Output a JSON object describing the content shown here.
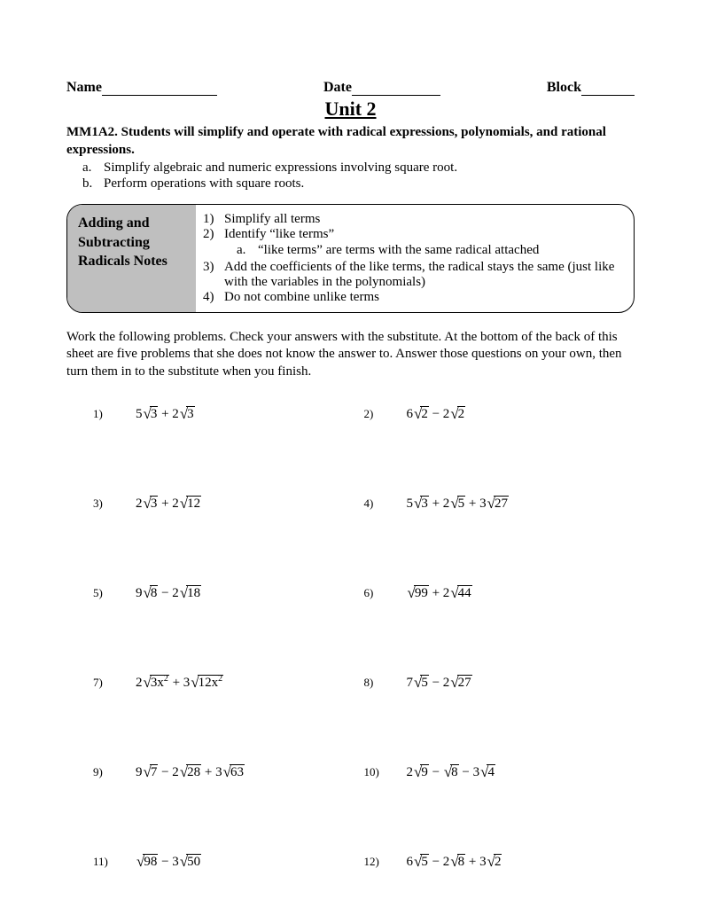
{
  "header": {
    "name_label": "Name",
    "date_label": "Date",
    "block_label": "Block",
    "name_blank_width": 130,
    "date_blank_width": 100,
    "block_blank_width": 60
  },
  "unit_title": "Unit 2",
  "standard": "MM1A2. Students will simplify and operate with radical expressions, polynomials, and rational expressions.",
  "objectives": [
    {
      "letter": "a.",
      "text": "Simplify algebraic and numeric expressions involving square root."
    },
    {
      "letter": "b.",
      "text": "Perform operations with square roots."
    }
  ],
  "notes": {
    "title": "Adding and Subtracting Radicals Notes",
    "steps": [
      {
        "n": "1)",
        "text": "Simplify all terms",
        "sub": null
      },
      {
        "n": "2)",
        "text": "Identify “like terms”",
        "sub": {
          "letter": "a.",
          "text": "“like terms” are terms with the same radical attached"
        }
      },
      {
        "n": "3)",
        "text": "Add the coefficients of the like terms, the radical stays the same (just like with the variables in the polynomials)",
        "sub": null
      },
      {
        "n": "4)",
        "text": "Do not combine unlike terms",
        "sub": null
      }
    ]
  },
  "instructions": "Work the following problems. Check your answers with the substitute. At the bottom of the back of this sheet are five problems that she does not know the answer to. Answer those questions on your own, then turn them in to the substitute when you finish.",
  "problems": [
    {
      "n": "1)",
      "terms": [
        {
          "coef": "5",
          "rad": "3"
        },
        {
          "op": " + ",
          "coef": "2",
          "rad": "3"
        }
      ]
    },
    {
      "n": "2)",
      "terms": [
        {
          "coef": "6",
          "rad": "2"
        },
        {
          "op": " − ",
          "coef": "2",
          "rad": "2"
        }
      ]
    },
    {
      "n": "3)",
      "terms": [
        {
          "coef": "2",
          "rad": "3"
        },
        {
          "op": " + ",
          "coef": "2",
          "rad": "12"
        }
      ]
    },
    {
      "n": "4)",
      "terms": [
        {
          "coef": "5",
          "rad": "3"
        },
        {
          "op": " + ",
          "coef": "2",
          "rad": "5"
        },
        {
          "op": " + ",
          "coef": "3",
          "rad": "27"
        }
      ]
    },
    {
      "n": "5)",
      "terms": [
        {
          "coef": "9",
          "rad": "8"
        },
        {
          "op": " − ",
          "coef": "2",
          "rad": "18"
        }
      ]
    },
    {
      "n": "6)",
      "terms": [
        {
          "coef": "",
          "rad": "99"
        },
        {
          "op": " + ",
          "coef": "2",
          "rad": "44"
        }
      ]
    },
    {
      "n": "7)",
      "terms": [
        {
          "coef": "2",
          "rad": "3x",
          "sup": "2"
        },
        {
          "op": " + ",
          "coef": "3",
          "rad": "12x",
          "sup": "2"
        }
      ]
    },
    {
      "n": "8)",
      "terms": [
        {
          "coef": "7",
          "rad": "5"
        },
        {
          "op": " − ",
          "coef": "2",
          "rad": "27"
        }
      ]
    },
    {
      "n": "9)",
      "terms": [
        {
          "coef": "9",
          "rad": "7"
        },
        {
          "op": " − ",
          "coef": "2",
          "rad": "28"
        },
        {
          "op": " + ",
          "coef": "3",
          "rad": "63"
        }
      ]
    },
    {
      "n": "10)",
      "terms": [
        {
          "coef": "2",
          "rad": "9"
        },
        {
          "op": " − ",
          "coef": "",
          "rad": "8"
        },
        {
          "op": " − ",
          "coef": "3",
          "rad": "4"
        }
      ]
    },
    {
      "n": "11)",
      "terms": [
        {
          "coef": "",
          "rad": "98"
        },
        {
          "op": " − ",
          "coef": "3",
          "rad": "50"
        }
      ]
    },
    {
      "n": "12)",
      "terms": [
        {
          "coef": "6",
          "rad": "5"
        },
        {
          "op": " − ",
          "coef": "2",
          "rad": "8"
        },
        {
          "op": " + ",
          "coef": "3",
          "rad": "2"
        }
      ]
    }
  ]
}
